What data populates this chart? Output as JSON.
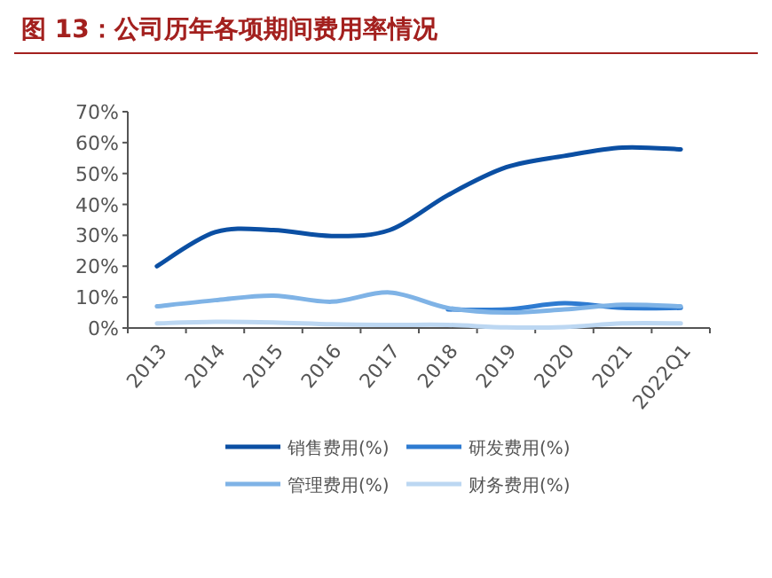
{
  "chart_data": {
    "type": "line",
    "title": "图 13：公司历年各项期间费用率情况",
    "categories": [
      "2013",
      "2014",
      "2015",
      "2016",
      "2017",
      "2018",
      "2019",
      "2020",
      "2021",
      "2022Q1"
    ],
    "series": [
      {
        "name": "销售费用(%)",
        "color": "#0b4fa3",
        "values": [
          20,
          31,
          31.7,
          29.8,
          31.7,
          43,
          52,
          55.7,
          58.4,
          57.8
        ]
      },
      {
        "name": "研发费用(%)",
        "color": "#2e7bd1",
        "values": [
          null,
          null,
          null,
          null,
          null,
          6,
          6,
          8,
          6.5,
          6.5
        ]
      },
      {
        "name": "管理费用(%)",
        "color": "#7fb3e6",
        "values": [
          7,
          9,
          10.5,
          8.5,
          11.5,
          6.5,
          5,
          6,
          7.5,
          7
        ]
      },
      {
        "name": "财务费用(%)",
        "color": "#bcd7f2",
        "values": [
          1.5,
          2,
          1.8,
          1.2,
          1,
          1,
          0.2,
          0.3,
          1.5,
          1.5
        ]
      }
    ],
    "ylim": [
      0,
      70
    ],
    "yticks": [
      {
        "value": 0,
        "label": "0%"
      },
      {
        "value": 10,
        "label": "10%"
      },
      {
        "value": 20,
        "label": "20%"
      },
      {
        "value": 30,
        "label": "30%"
      },
      {
        "value": 40,
        "label": "40%"
      },
      {
        "value": 50,
        "label": "50%"
      },
      {
        "value": 60,
        "label": "60%"
      },
      {
        "value": 70,
        "label": "70%"
      }
    ],
    "grid": false,
    "legend": "bottom",
    "marker": "none",
    "line_style": "solid"
  }
}
